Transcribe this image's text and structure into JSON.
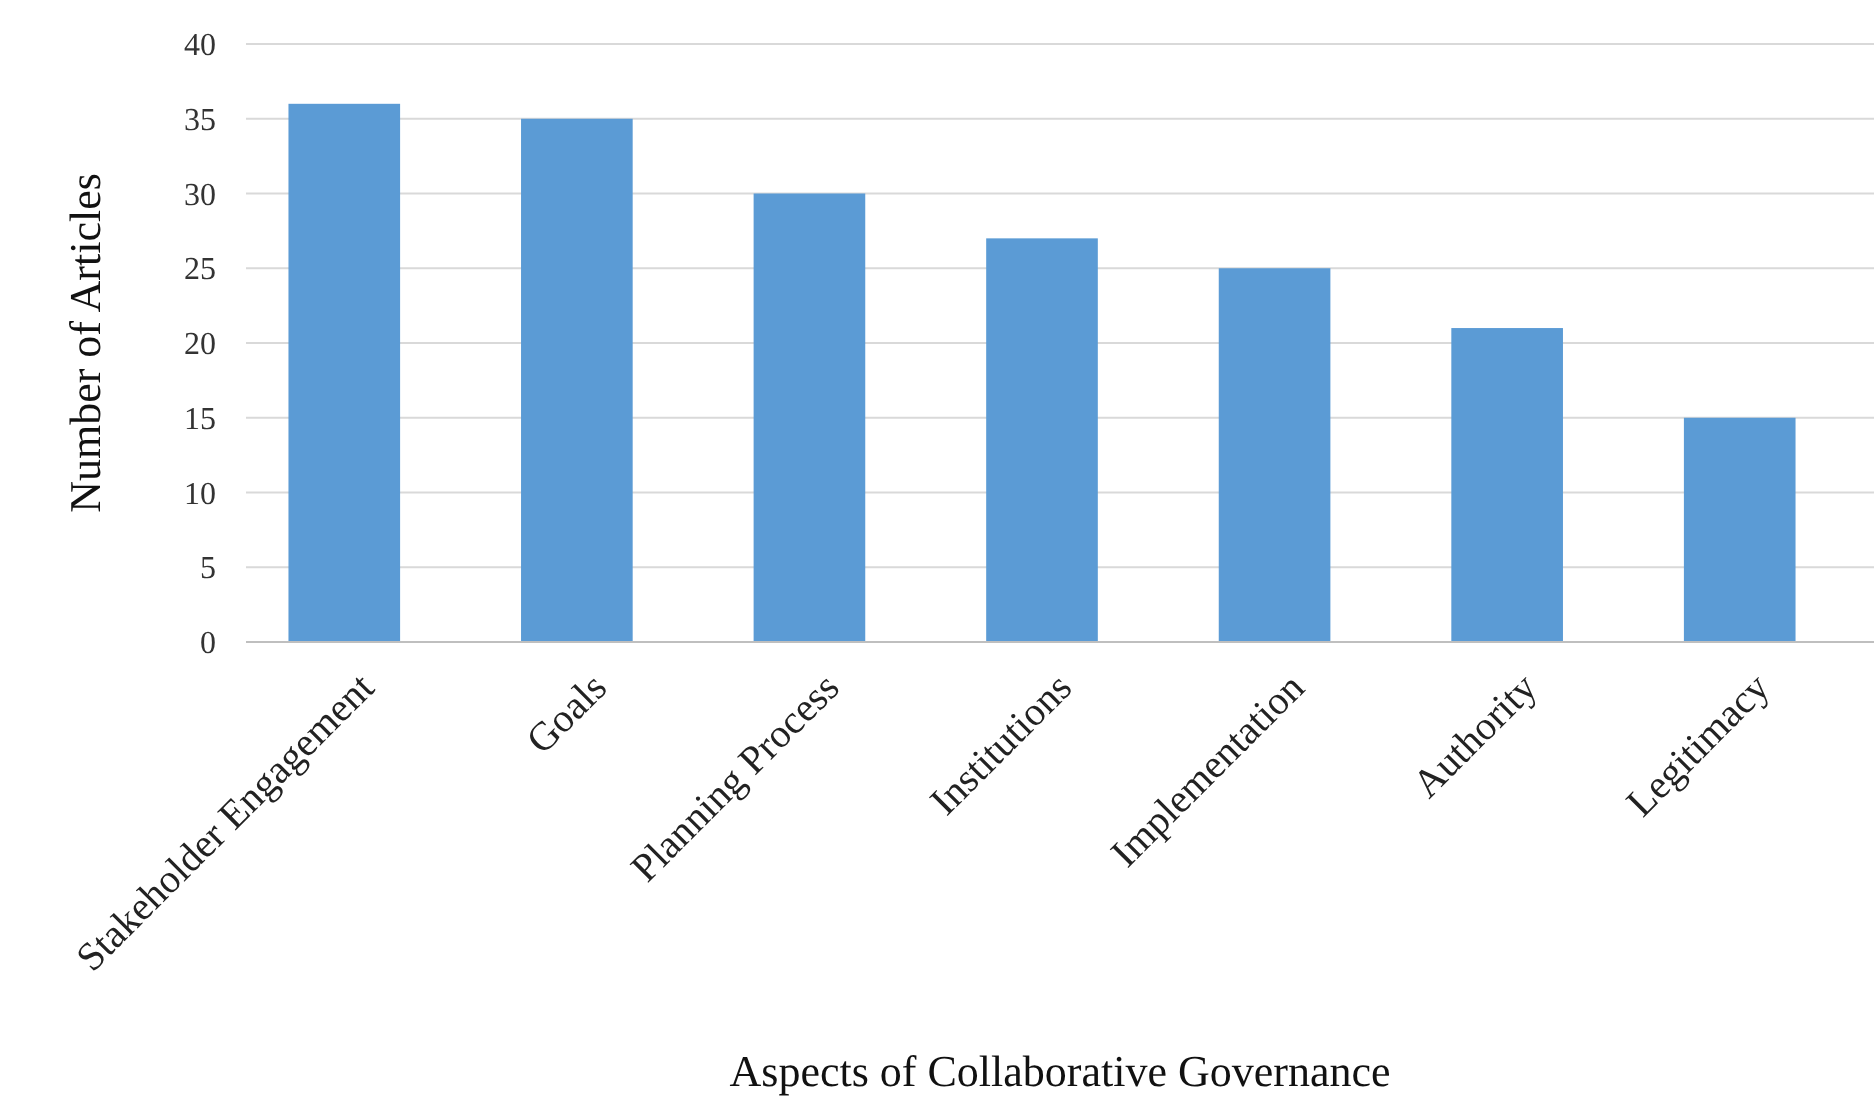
{
  "chart_data": {
    "type": "bar",
    "xlabel": "Aspects of Collaborative Governance",
    "ylabel": "Number of Articles",
    "categories": [
      "Stakeholder Engagement",
      "Goals",
      "Planning Process",
      "Institutions",
      "Implementation",
      "Authority",
      "Legitimacy"
    ],
    "values": [
      36,
      35,
      30,
      27,
      25,
      21,
      15
    ],
    "color": "#5b9bd5",
    "ylim": [
      0,
      40
    ],
    "yticks": [
      0,
      5,
      10,
      15,
      20,
      25,
      30,
      35,
      40
    ],
    "grid": "y"
  }
}
